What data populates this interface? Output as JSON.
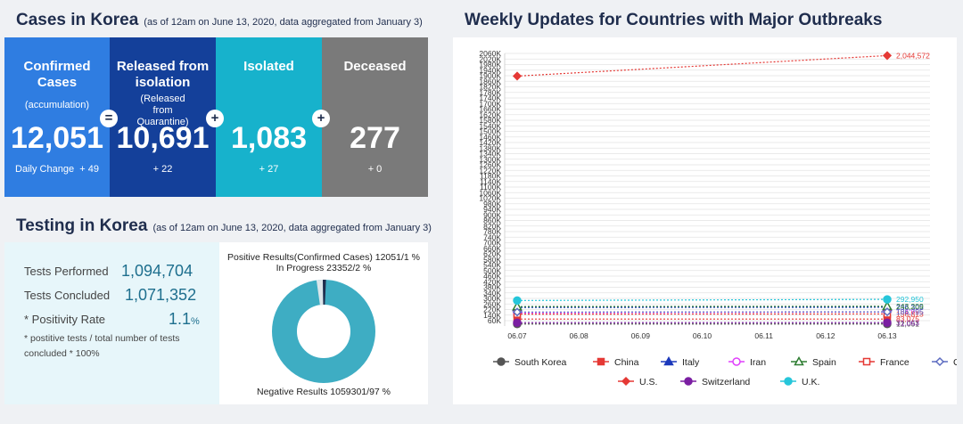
{
  "cases": {
    "title": "Cases in Korea",
    "subtitle": "(as of 12am on June 13, 2020, data aggregated from January 3)",
    "cards": [
      {
        "label": "Confirmed Cases",
        "sub": "(accumulation)",
        "value": "12,051",
        "change_label": "Daily Change",
        "change": "+ 49",
        "color": "#2f7de1"
      },
      {
        "label": "Released from isolation",
        "sub": "(Released from Quarantine)",
        "value": "10,691",
        "change_label": "",
        "change": "+ 22",
        "color": "#14409a"
      },
      {
        "label": "Isolated",
        "sub": "",
        "value": "1,083",
        "change_label": "",
        "change": "+ 27",
        "color": "#17b2cc"
      },
      {
        "label": "Deceased",
        "sub": "",
        "value": "277",
        "change_label": "",
        "change": "+ 0",
        "color": "#7a7a7a"
      }
    ],
    "operators": [
      "=",
      "+",
      "+"
    ]
  },
  "testing": {
    "title": "Testing in Korea",
    "subtitle": "(as of 12am on June 13, 2020, data aggregated from January 3)",
    "performed_label": "Tests Performed",
    "performed_value": "1,094,704",
    "concluded_label": "Tests Concluded",
    "concluded_value": "1,071,352",
    "positivity_label": "* Positivity Rate",
    "positivity_value": "1.1",
    "positivity_unit": "%",
    "footnote_1": "* postitive tests / total number of tests",
    "footnote_2": "concluded * 100%",
    "donut_label_top_1": "Positive Results(Confirmed Cases) 12051/1 %",
    "donut_label_top_2": "In Progress 23352/2 %",
    "donut_label_bottom": "Negative Results 1059301/97 %",
    "donut_colors": {
      "negative": "#3eadc3",
      "positive": "#1f2d4d",
      "progress": "#dce6ea"
    }
  },
  "chart_title": "Weekly Updates for Countries with Major Outbreaks",
  "chart_data": {
    "type": "line",
    "title": "Weekly Updates for Countries with Major Outbreaks",
    "categories": [
      "06.07",
      "06.08",
      "06.09",
      "06.10",
      "06.11",
      "06.12",
      "06.13"
    ],
    "y_ticks": [
      "60K",
      "140K",
      "220K",
      "260K",
      "300K",
      "340K",
      "380K",
      "420K",
      "460K",
      "500K",
      "540K",
      "580K",
      "620K",
      "660K",
      "700K",
      "740K",
      "780K",
      "820K",
      "860K",
      "900K",
      "940K",
      "980K",
      "1020K",
      "1060K",
      "1100K",
      "1140K",
      "1180K",
      "1220K",
      "1260K",
      "1300K",
      "1340K",
      "1380K",
      "1420K",
      "1460K",
      "1500K",
      "1540K",
      "1580K",
      "1620K",
      "1660K",
      "1700K",
      "1740K",
      "1780K",
      "1820K",
      "1860K",
      "1900K",
      "1940K",
      "1980K",
      "2020K",
      "2060K"
    ],
    "series": [
      {
        "name": "South Korea",
        "values": [
          11776,
          null,
          null,
          null,
          null,
          null,
          12051
        ],
        "color": "#555555",
        "marker": "circle-filled",
        "end_label": "12,051"
      },
      {
        "name": "China",
        "values": [
          83036,
          null,
          null,
          null,
          null,
          null,
          83075
        ],
        "color": "#e53935",
        "marker": "square-filled",
        "end_label": "83,075"
      },
      {
        "name": "Italy",
        "values": [
          234998,
          null,
          null,
          null,
          null,
          null,
          236305
        ],
        "color": "#1c39bb",
        "marker": "triangle-filled",
        "end_label": "236,305"
      },
      {
        "name": "Iran",
        "values": [
          171789,
          null,
          null,
          null,
          null,
          null,
          184955
        ],
        "color": "#e040fb",
        "marker": "circle-open",
        "end_label": "184,955"
      },
      {
        "name": "Spain",
        "values": [
          241310,
          null,
          null,
          null,
          null,
          null,
          243209
        ],
        "color": "#2e7d32",
        "marker": "triangle-open",
        "end_label": "243,209"
      },
      {
        "name": "France",
        "values": [
          153977,
          null,
          null,
          null,
          null,
          null,
          156813
        ],
        "color": "#e53935",
        "marker": "square-open",
        "end_label": "156,813"
      },
      {
        "name": "Germany",
        "values": [
          183678,
          null,
          null,
          null,
          null,
          null,
          186795
        ],
        "color": "#5c6bc0",
        "marker": "diamond-open",
        "end_label": "186,795"
      },
      {
        "name": "U.S.",
        "values": [
          1897380,
          null,
          null,
          null,
          null,
          null,
          2044572
        ],
        "color": "#e53935",
        "marker": "diamond-filled",
        "end_label": "2,044,572"
      },
      {
        "name": "Switzerland",
        "values": [
          30893,
          null,
          null,
          null,
          null,
          null,
          31063
        ],
        "color": "#7b1fa2",
        "marker": "circle-filled",
        "end_label": "31,063"
      },
      {
        "name": "U.K.",
        "values": [
          284868,
          null,
          null,
          null,
          null,
          null,
          292950
        ],
        "color": "#26c6da",
        "marker": "circle-filled",
        "end_label": "292,950"
      }
    ]
  }
}
